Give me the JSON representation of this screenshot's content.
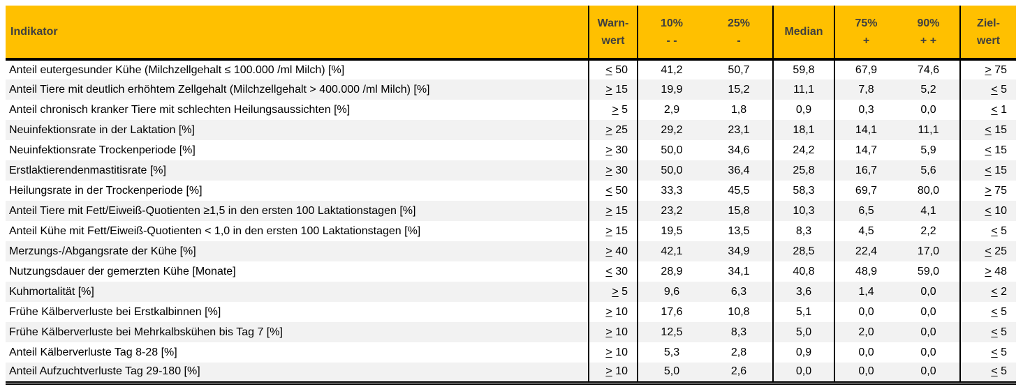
{
  "colors": {
    "header_bg": "#FFC000",
    "header_text": "#3F3F3F",
    "row_stripe": "#F2F2F2",
    "border": "#000000",
    "body_text": "#000000"
  },
  "chart_data": {
    "type": "table",
    "columns": [
      {
        "id": "indikator",
        "line1": "Indikator",
        "line2": ""
      },
      {
        "id": "warnwert",
        "line1": "Warn-",
        "line2": "wert"
      },
      {
        "id": "p10",
        "line1": "10%",
        "line2": "- -"
      },
      {
        "id": "p25",
        "line1": "25%",
        "line2": "-"
      },
      {
        "id": "median",
        "line1": "Median",
        "line2": ""
      },
      {
        "id": "p75",
        "line1": "75%",
        "line2": "+"
      },
      {
        "id": "p90",
        "line1": "90%",
        "line2": "+ +"
      },
      {
        "id": "zielwert",
        "line1": "Ziel-",
        "line2": "wert"
      }
    ],
    "rows": [
      {
        "indikator": "Anteil eutergesunder Kühe (Milchzellgehalt ≤ 100.000 /ml Milch) [%]",
        "warnwert": "≤ 50",
        "p10": "41,2",
        "p25": "50,7",
        "median": "59,8",
        "p75": "67,9",
        "p90": "74,6",
        "zielwert": "≥ 75"
      },
      {
        "indikator": "Anteil Tiere mit deutlich erhöhtem Zellgehalt (Milchzellgehalt > 400.000 /ml Milch) [%]",
        "warnwert": "≥ 15",
        "p10": "19,9",
        "p25": "15,2",
        "median": "11,1",
        "p75": "7,8",
        "p90": "5,2",
        "zielwert": "≤ 5"
      },
      {
        "indikator": "Anteil chronisch kranker Tiere mit schlechten Heilungsaussichten [%]",
        "warnwert": "≥ 5",
        "p10": "2,9",
        "p25": "1,8",
        "median": "0,9",
        "p75": "0,3",
        "p90": "0,0",
        "zielwert": "≤ 1"
      },
      {
        "indikator": "Neuinfektionsrate in der Laktation [%]",
        "warnwert": "≥ 25",
        "p10": "29,2",
        "p25": "23,1",
        "median": "18,1",
        "p75": "14,1",
        "p90": "11,1",
        "zielwert": "≤ 15"
      },
      {
        "indikator": "Neuinfektionsrate Trockenperiode [%]",
        "warnwert": "≥ 30",
        "p10": "50,0",
        "p25": "34,6",
        "median": "24,2",
        "p75": "14,7",
        "p90": "5,9",
        "zielwert": "≤ 15"
      },
      {
        "indikator": "Erstlaktierendenmastitisrate [%]",
        "warnwert": "≥ 30",
        "p10": "50,0",
        "p25": "36,4",
        "median": "25,8",
        "p75": "16,7",
        "p90": "5,6",
        "zielwert": "≤ 15"
      },
      {
        "indikator": "Heilungsrate in der Trockenperiode [%]",
        "warnwert": "≤ 50",
        "p10": "33,3",
        "p25": "45,5",
        "median": "58,3",
        "p75": "69,7",
        "p90": "80,0",
        "zielwert": "≥ 75"
      },
      {
        "indikator": "Anteil Tiere mit Fett/Eiweiß-Quotienten ≥1,5 in den ersten 100 Laktationstagen [%]",
        "warnwert": "≥ 15",
        "p10": "23,2",
        "p25": "15,8",
        "median": "10,3",
        "p75": "6,5",
        "p90": "4,1",
        "zielwert": "≤ 10"
      },
      {
        "indikator": "Anteil Kühe mit Fett/Eiweiß-Quotienten < 1,0 in den ersten 100 Laktationstagen [%]",
        "warnwert": "≥ 15",
        "p10": "19,5",
        "p25": "13,5",
        "median": "8,3",
        "p75": "4,5",
        "p90": "2,2",
        "zielwert": "≤ 5"
      },
      {
        "indikator": "Merzungs-/Abgangsrate der Kühe [%]",
        "warnwert": "≥ 40",
        "p10": "42,1",
        "p25": "34,9",
        "median": "28,5",
        "p75": "22,4",
        "p90": "17,0",
        "zielwert": "≤ 25"
      },
      {
        "indikator": "Nutzungsdauer der gemerzten Kühe [Monate]",
        "warnwert": "≤ 30",
        "p10": "28,9",
        "p25": "34,1",
        "median": "40,8",
        "p75": "48,9",
        "p90": "59,0",
        "zielwert": "≥ 48"
      },
      {
        "indikator": "Kuhmortalität [%]",
        "warnwert": "≥ 5",
        "p10": "9,6",
        "p25": "6,3",
        "median": "3,6",
        "p75": "1,4",
        "p90": "0,0",
        "zielwert": "≤ 2"
      },
      {
        "indikator": "Frühe Kälberverluste bei Erstkalbinnen [%]",
        "warnwert": "≥ 10",
        "p10": "17,6",
        "p25": "10,8",
        "median": "5,1",
        "p75": "0,0",
        "p90": "0,0",
        "zielwert": "≤ 5"
      },
      {
        "indikator": "Frühe Kälberverluste bei Mehrkalbskühen bis Tag 7 [%]",
        "warnwert": "≥ 10",
        "p10": "12,5",
        "p25": "8,3",
        "median": "5,0",
        "p75": "2,0",
        "p90": "0,0",
        "zielwert": "≤ 5"
      },
      {
        "indikator": "Anteil Kälberverluste Tag 8-28 [%]",
        "warnwert": "≥ 10",
        "p10": "5,3",
        "p25": "2,8",
        "median": "0,9",
        "p75": "0,0",
        "p90": "0,0",
        "zielwert": "≤ 5"
      },
      {
        "indikator": "Anteil Aufzuchtverluste Tag 29-180 [%]",
        "warnwert": "≥ 10",
        "p10": "5,0",
        "p25": "2,6",
        "median": "0,0",
        "p75": "0,0",
        "p90": "0,0",
        "zielwert": "≤ 5"
      }
    ]
  }
}
